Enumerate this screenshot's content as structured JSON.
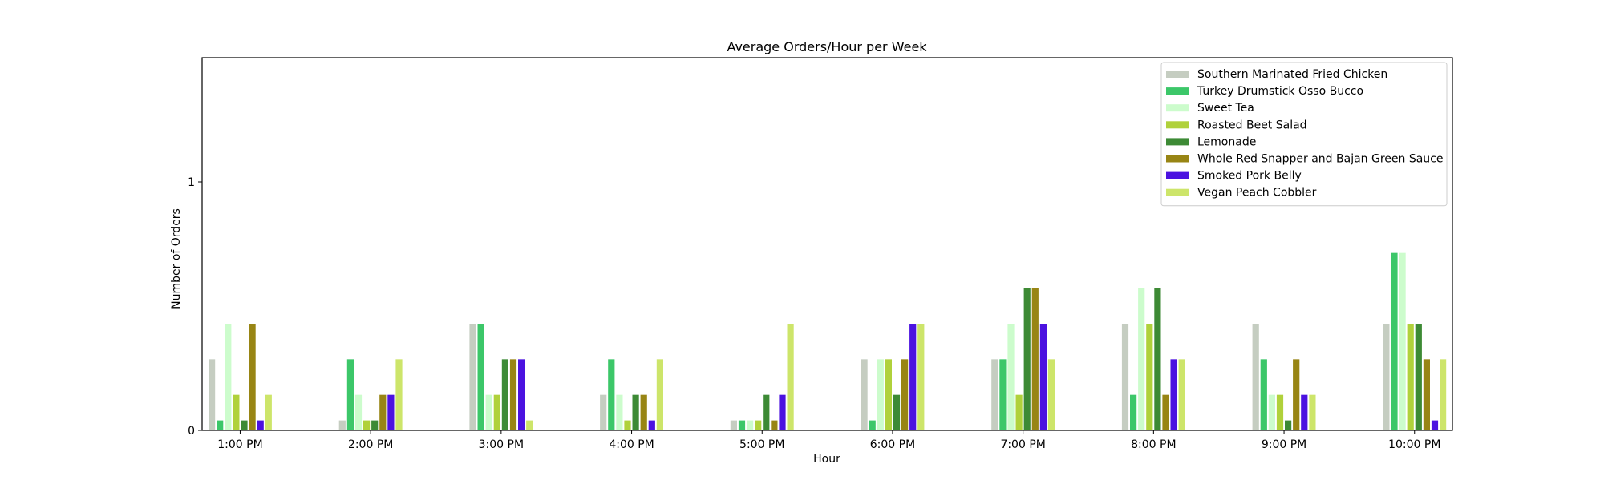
{
  "chart_data": {
    "type": "bar",
    "title": "Average Orders/Hour per Week",
    "xlabel": "Hour",
    "ylabel": "Number of Orders",
    "ylim": [
      0,
      1.5
    ],
    "yticks": [
      0,
      1
    ],
    "ytick_labels": [
      "0",
      "1"
    ],
    "grid": false,
    "legend_position": "top-right",
    "categories": [
      "1:00 PM",
      "2:00 PM",
      "3:00 PM",
      "4:00 PM",
      "5:00 PM",
      "6:00 PM",
      "7:00 PM",
      "8:00 PM",
      "9:00 PM",
      "10:00 PM"
    ],
    "series": [
      {
        "name": "Southern Marinated Fried Chicken",
        "color": "#c5cdc1",
        "values": [
          0.286,
          0.0,
          0.429,
          0.143,
          0.0,
          0.286,
          0.286,
          0.429,
          0.429,
          0.429
        ]
      },
      {
        "name": "Turkey Drumstick Osso Bucco",
        "color": "#3cc769",
        "values": [
          0.0,
          0.286,
          0.429,
          0.286,
          0.0,
          0.0,
          0.286,
          0.143,
          0.286,
          0.714
        ]
      },
      {
        "name": "Sweet Tea",
        "color": "#ccfccc",
        "values": [
          0.429,
          0.143,
          0.143,
          0.143,
          0.0,
          0.286,
          0.429,
          0.571,
          0.143,
          0.714
        ]
      },
      {
        "name": "Roasted Beet Salad",
        "color": "#b0d13b",
        "values": [
          0.143,
          0.0,
          0.143,
          0.0,
          0.0,
          0.286,
          0.143,
          0.429,
          0.143,
          0.429
        ]
      },
      {
        "name": "Lemonade",
        "color": "#3d8a35",
        "values": [
          0.0,
          0.0,
          0.286,
          0.143,
          0.143,
          0.143,
          0.571,
          0.571,
          0.0,
          0.429
        ]
      },
      {
        "name": "Whole Red Snapper and Bajan Green Sauce",
        "color": "#988514",
        "values": [
          0.429,
          0.143,
          0.286,
          0.143,
          0.0,
          0.286,
          0.571,
          0.143,
          0.286,
          0.286
        ]
      },
      {
        "name": "Smoked Pork Belly",
        "color": "#4b12e0",
        "values": [
          0.0,
          0.143,
          0.286,
          0.0,
          0.143,
          0.429,
          0.429,
          0.286,
          0.143,
          0.0
        ]
      },
      {
        "name": "Vegan Peach Cobbler",
        "color": "#cde56a",
        "values": [
          0.143,
          0.286,
          0.0,
          0.286,
          0.429,
          0.429,
          0.286,
          0.286,
          0.143,
          0.286
        ]
      }
    ]
  }
}
